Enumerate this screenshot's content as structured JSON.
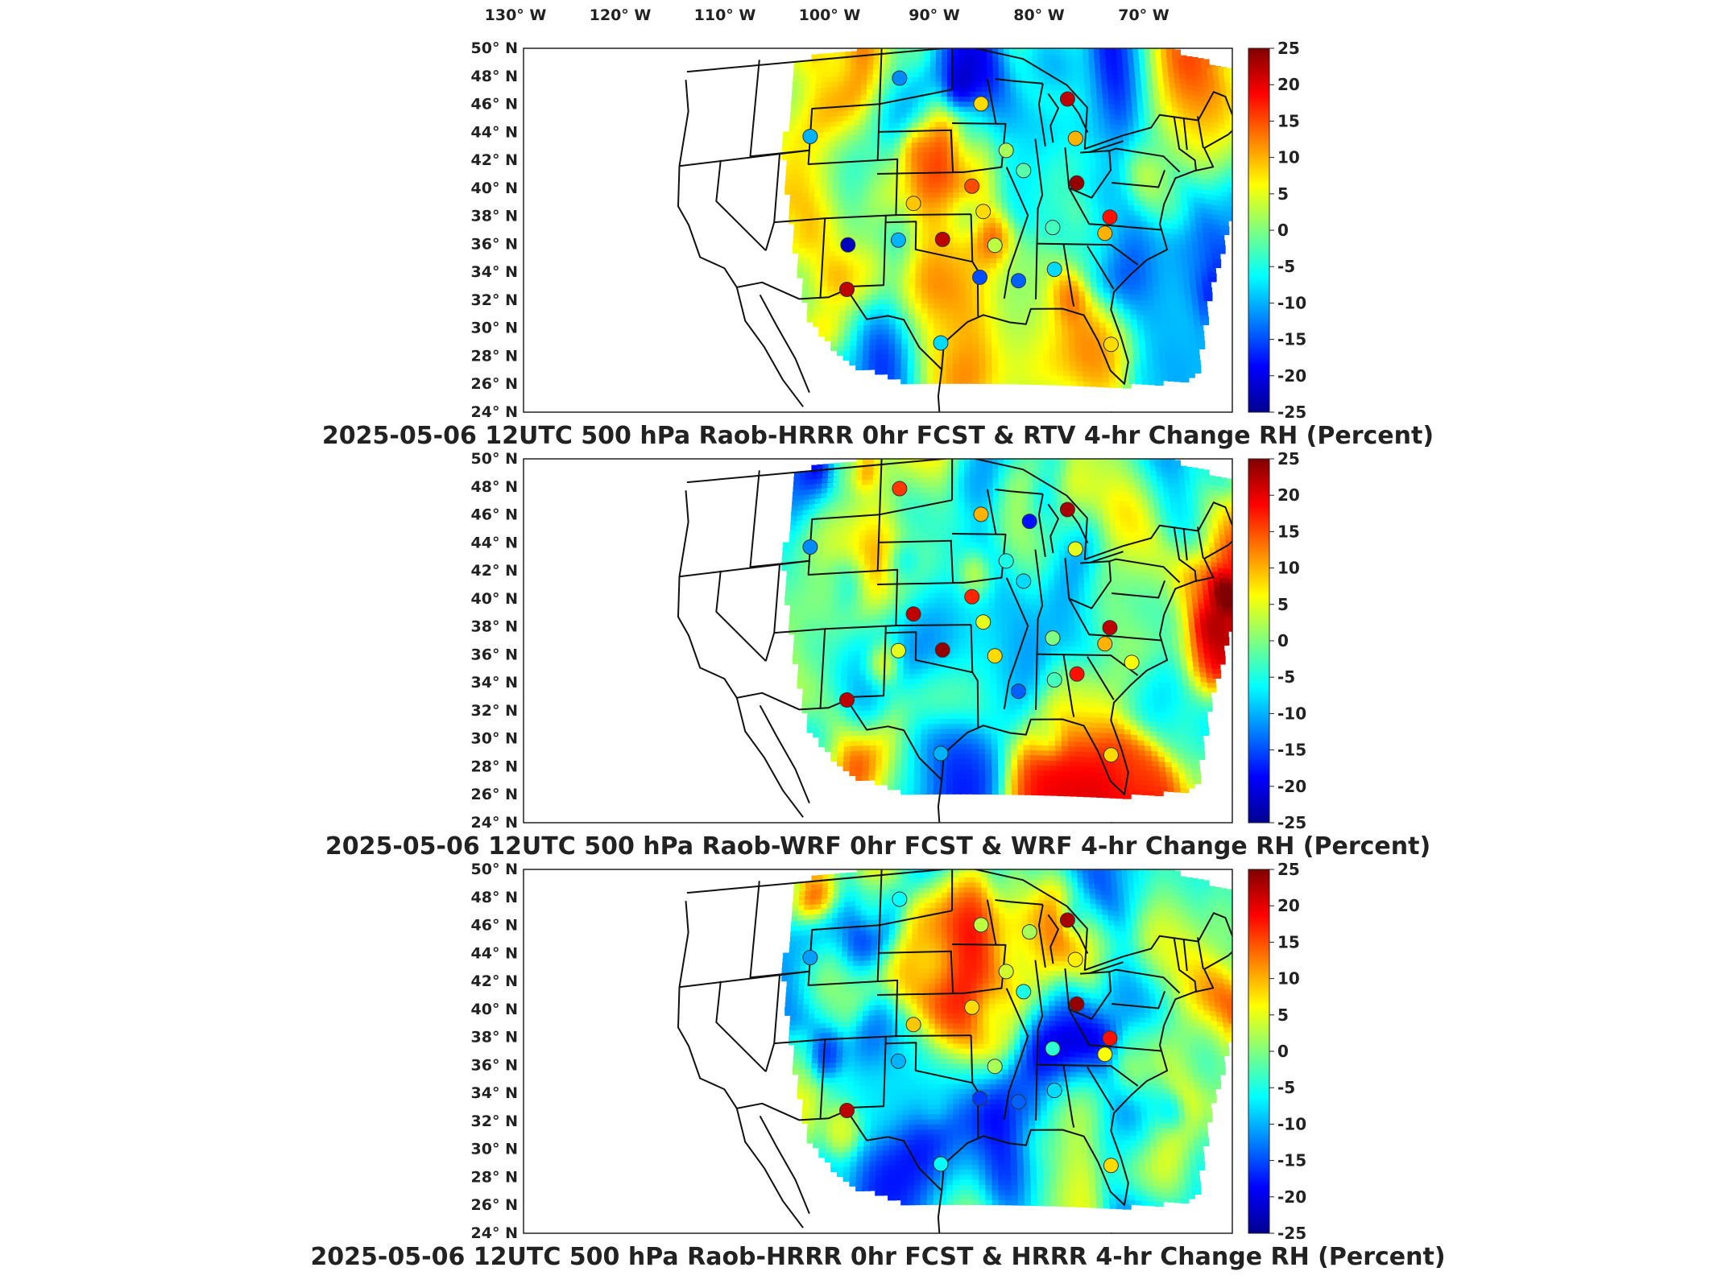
{
  "lon_labels": [
    "130° W",
    "120° W",
    "110° W",
    "100° W",
    "90° W",
    "80° W",
    "70° W"
  ],
  "lat_labels": [
    "50° N",
    "48° N",
    "46° N",
    "44° N",
    "42° N",
    "40° N",
    "38° N",
    "36° N",
    "34° N",
    "32° N",
    "30° N",
    "28° N",
    "26° N",
    "24° N"
  ],
  "colorbar": {
    "ticks": [
      "25",
      "20",
      "15",
      "10",
      "5",
      "0",
      "-5",
      "-10",
      "-15",
      "-20",
      "-25"
    ],
    "min": -25,
    "max": 25,
    "colormap": "jet"
  },
  "panels": [
    {
      "title": "2025-05-06 12UTC 500 hPa Raob-HRRR 0hr FCST & RTV 4-hr Change RH (Percent)",
      "seed": 11,
      "stations": [
        {
          "lon": -102.0,
          "lat": 46.8,
          "v": -12
        },
        {
          "lon": -93.5,
          "lat": 44.9,
          "v": 8
        },
        {
          "lon": -84.5,
          "lat": 45.5,
          "v": 22
        },
        {
          "lon": -83.9,
          "lat": 42.7,
          "v": 10
        },
        {
          "lon": -89.3,
          "lat": 40.2,
          "v": -2
        },
        {
          "lon": -91.0,
          "lat": 41.6,
          "v": 2
        },
        {
          "lon": -84.0,
          "lat": 39.5,
          "v": 24
        },
        {
          "lon": -94.5,
          "lat": 39.0,
          "v": 15
        },
        {
          "lon": -100.3,
          "lat": 37.8,
          "v": 9
        },
        {
          "lon": -93.4,
          "lat": 37.2,
          "v": 8
        },
        {
          "lon": -80.9,
          "lat": 37.2,
          "v": 18
        },
        {
          "lon": -81.5,
          "lat": 36.0,
          "v": 10
        },
        {
          "lon": -86.6,
          "lat": 36.2,
          "v": -3
        },
        {
          "lon": -92.3,
          "lat": 34.8,
          "v": 3
        },
        {
          "lon": -97.4,
          "lat": 35.2,
          "v": 22
        },
        {
          "lon": -101.7,
          "lat": 35.2,
          "v": -10
        },
        {
          "lon": -106.6,
          "lat": 35.0,
          "v": -22
        },
        {
          "lon": -93.8,
          "lat": 32.5,
          "v": -15
        },
        {
          "lon": -90.1,
          "lat": 32.3,
          "v": -14
        },
        {
          "lon": -86.6,
          "lat": 33.2,
          "v": -8
        },
        {
          "lon": -111.0,
          "lat": 43.0,
          "v": -10
        },
        {
          "lon": -106.5,
          "lat": 31.8,
          "v": 22
        },
        {
          "lon": -97.5,
          "lat": 27.8,
          "v": -8
        },
        {
          "lon": -81.6,
          "lat": 28.0,
          "v": 8
        }
      ]
    },
    {
      "title": "2025-05-06 12UTC 500 hPa Raob-WRF 0hr FCST & WRF 4-hr Change RH (Percent)",
      "seed": 27,
      "stations": [
        {
          "lon": -102.0,
          "lat": 46.8,
          "v": 16
        },
        {
          "lon": -93.5,
          "lat": 44.9,
          "v": 10
        },
        {
          "lon": -88.5,
          "lat": 44.5,
          "v": -18
        },
        {
          "lon": -84.5,
          "lat": 45.5,
          "v": 23
        },
        {
          "lon": -83.9,
          "lat": 42.7,
          "v": 5
        },
        {
          "lon": -89.3,
          "lat": 40.2,
          "v": -8
        },
        {
          "lon": -91.0,
          "lat": 41.6,
          "v": -5
        },
        {
          "lon": -94.5,
          "lat": 39.0,
          "v": 17
        },
        {
          "lon": -100.3,
          "lat": 37.8,
          "v": 22
        },
        {
          "lon": -93.4,
          "lat": 37.2,
          "v": 5
        },
        {
          "lon": -80.9,
          "lat": 37.2,
          "v": 22
        },
        {
          "lon": -81.5,
          "lat": 36.0,
          "v": 10
        },
        {
          "lon": -86.6,
          "lat": 36.2,
          "v": 0
        },
        {
          "lon": -92.3,
          "lat": 34.8,
          "v": 8
        },
        {
          "lon": -97.4,
          "lat": 35.2,
          "v": 24
        },
        {
          "lon": -101.7,
          "lat": 35.2,
          "v": 5
        },
        {
          "lon": -90.1,
          "lat": 32.3,
          "v": -14
        },
        {
          "lon": -86.6,
          "lat": 33.2,
          "v": -3
        },
        {
          "lon": -84.4,
          "lat": 33.7,
          "v": 18
        },
        {
          "lon": -111.0,
          "lat": 43.0,
          "v": -12
        },
        {
          "lon": -106.5,
          "lat": 31.8,
          "v": 22
        },
        {
          "lon": -97.5,
          "lat": 27.8,
          "v": -10
        },
        {
          "lon": -81.6,
          "lat": 28.0,
          "v": 8
        },
        {
          "lon": -79.0,
          "lat": 34.8,
          "v": 6
        }
      ]
    },
    {
      "title": "2025-05-06 12UTC 500 hPa Raob-HRRR 0hr FCST & HRRR 4-hr Change RH (Percent)",
      "seed": 43,
      "stations": [
        {
          "lon": -102.0,
          "lat": 46.8,
          "v": -6
        },
        {
          "lon": -93.5,
          "lat": 44.9,
          "v": 3
        },
        {
          "lon": -88.5,
          "lat": 44.5,
          "v": 2
        },
        {
          "lon": -84.5,
          "lat": 45.5,
          "v": 23
        },
        {
          "lon": -83.9,
          "lat": 42.7,
          "v": 7
        },
        {
          "lon": -89.3,
          "lat": 40.2,
          "v": -5
        },
        {
          "lon": -91.0,
          "lat": 41.6,
          "v": 4
        },
        {
          "lon": -94.5,
          "lat": 39.0,
          "v": 8
        },
        {
          "lon": -100.3,
          "lat": 37.8,
          "v": 9
        },
        {
          "lon": -84.0,
          "lat": 39.5,
          "v": 24
        },
        {
          "lon": -80.9,
          "lat": 37.2,
          "v": 18
        },
        {
          "lon": -81.5,
          "lat": 36.0,
          "v": 6
        },
        {
          "lon": -86.6,
          "lat": 36.2,
          "v": -4
        },
        {
          "lon": -92.3,
          "lat": 34.8,
          "v": 2
        },
        {
          "lon": -101.7,
          "lat": 35.2,
          "v": -10
        },
        {
          "lon": -90.1,
          "lat": 32.3,
          "v": -14
        },
        {
          "lon": -93.8,
          "lat": 32.5,
          "v": -16
        },
        {
          "lon": -86.6,
          "lat": 33.2,
          "v": -8
        },
        {
          "lon": -111.0,
          "lat": 43.0,
          "v": -11
        },
        {
          "lon": -106.5,
          "lat": 31.8,
          "v": 22
        },
        {
          "lon": -97.5,
          "lat": 27.8,
          "v": -6
        },
        {
          "lon": -81.6,
          "lat": 28.0,
          "v": 8
        }
      ]
    }
  ]
}
